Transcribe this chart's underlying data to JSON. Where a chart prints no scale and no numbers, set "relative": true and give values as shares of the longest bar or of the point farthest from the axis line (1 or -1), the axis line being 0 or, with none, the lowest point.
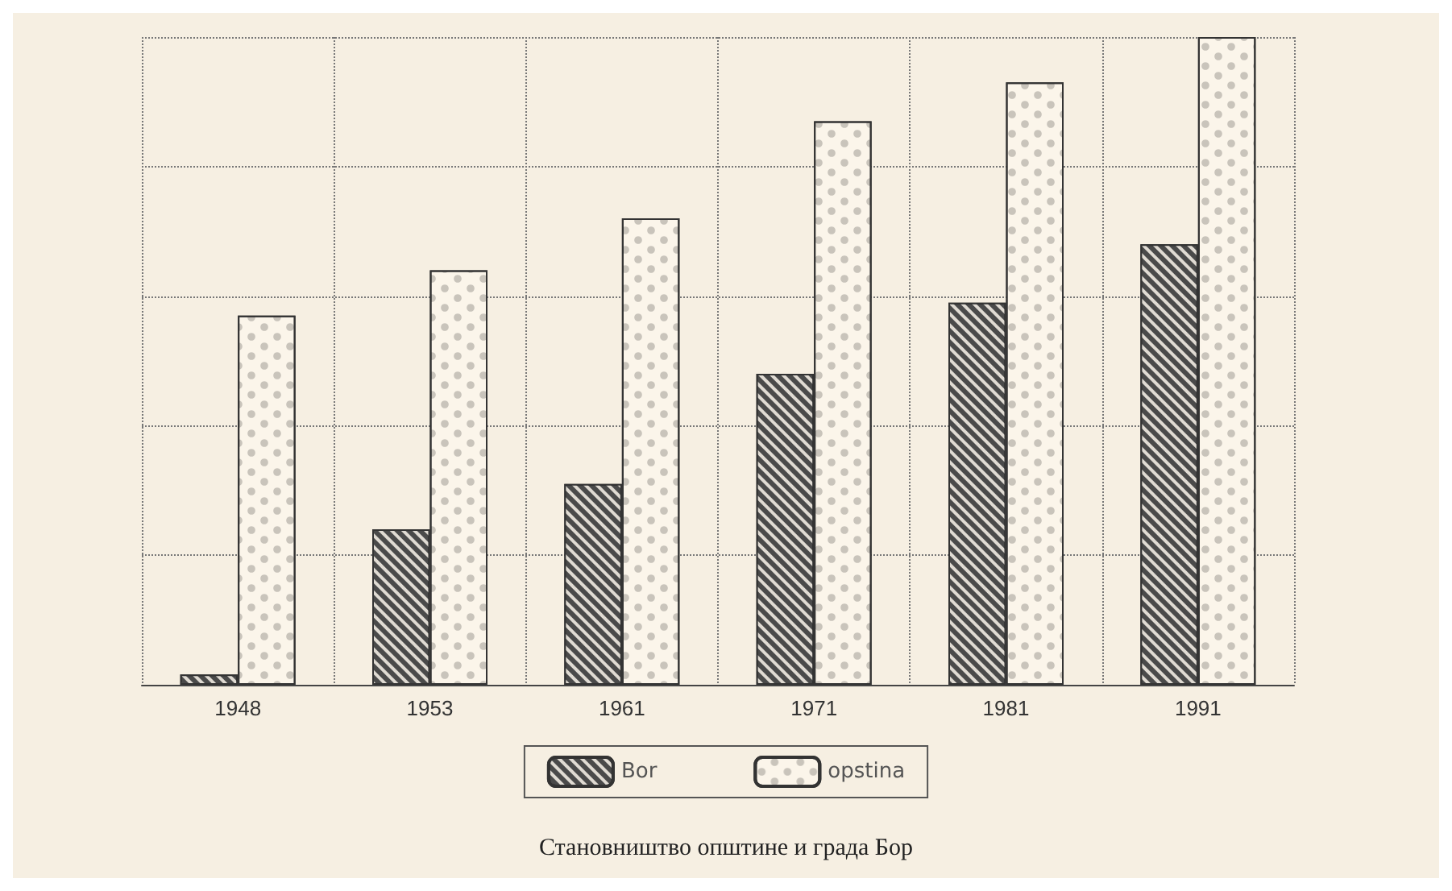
{
  "chart_data": {
    "type": "bar",
    "title": "Становништво општине и града Бор",
    "categories": [
      "1948",
      "1953",
      "1961",
      "1971",
      "1981",
      "1991"
    ],
    "relative": true,
    "series": [
      {
        "name": "Bor",
        "color": "#4a4a4a",
        "values": [
          0.016,
          0.24,
          0.31,
          0.48,
          0.59,
          0.68
        ]
      },
      {
        "name": "opstina",
        "color": "#fbf5ea",
        "values": [
          0.57,
          0.64,
          0.72,
          0.87,
          0.93,
          1
        ]
      }
    ],
    "grid": true,
    "legend": "bottom"
  }
}
